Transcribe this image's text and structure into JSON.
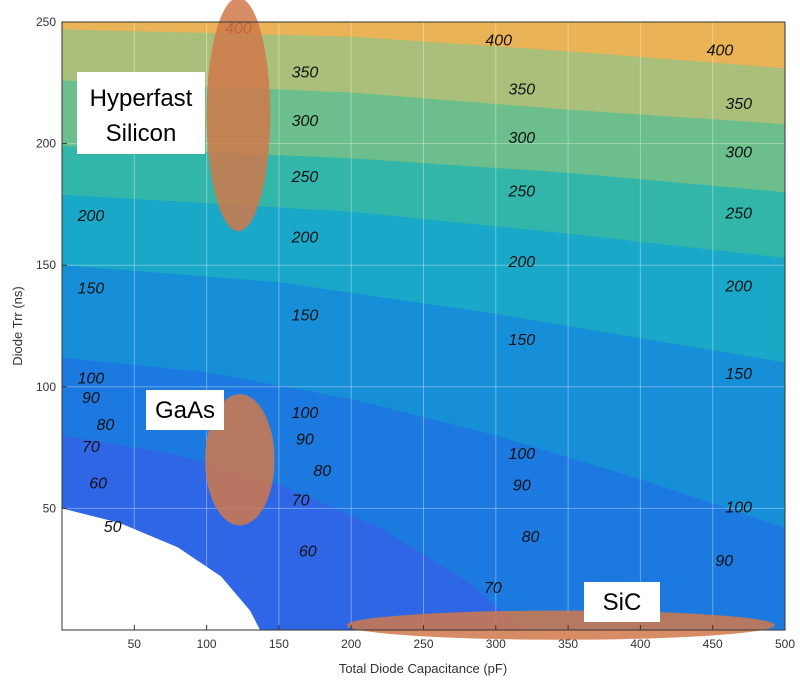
{
  "chart_data": {
    "type": "contour",
    "title": "",
    "xlabel": "Total Diode Capacitance (pF)",
    "ylabel": "Diode Trr (ns)",
    "xlim": [
      0,
      500
    ],
    "ylim": [
      0,
      250
    ],
    "xticks": [
      50,
      100,
      150,
      200,
      250,
      300,
      350,
      400,
      450,
      500
    ],
    "yticks": [
      50,
      100,
      150,
      200,
      250
    ],
    "grid": true,
    "contour_levels": [
      50,
      60,
      70,
      80,
      90,
      100,
      150,
      200,
      250,
      300,
      350,
      400
    ],
    "contour_labels": [
      {
        "text": "400",
        "x": 122,
        "y": 247
      },
      {
        "text": "400",
        "x": 302,
        "y": 242
      },
      {
        "text": "400",
        "x": 455,
        "y": 238
      },
      {
        "text": "350",
        "x": 168,
        "y": 229
      },
      {
        "text": "350",
        "x": 318,
        "y": 222
      },
      {
        "text": "350",
        "x": 468,
        "y": 216
      },
      {
        "text": "300",
        "x": 168,
        "y": 209
      },
      {
        "text": "300",
        "x": 318,
        "y": 202
      },
      {
        "text": "300",
        "x": 468,
        "y": 196
      },
      {
        "text": "250",
        "x": 168,
        "y": 186
      },
      {
        "text": "250",
        "x": 318,
        "y": 180
      },
      {
        "text": "250",
        "x": 468,
        "y": 171
      },
      {
        "text": "200",
        "x": 20,
        "y": 170
      },
      {
        "text": "200",
        "x": 168,
        "y": 161
      },
      {
        "text": "200",
        "x": 318,
        "y": 151
      },
      {
        "text": "200",
        "x": 468,
        "y": 141
      },
      {
        "text": "150",
        "x": 20,
        "y": 140
      },
      {
        "text": "150",
        "x": 168,
        "y": 129
      },
      {
        "text": "150",
        "x": 318,
        "y": 119
      },
      {
        "text": "150",
        "x": 468,
        "y": 105
      },
      {
        "text": "100",
        "x": 20,
        "y": 103
      },
      {
        "text": "100",
        "x": 168,
        "y": 89
      },
      {
        "text": "100",
        "x": 318,
        "y": 72
      },
      {
        "text": "100",
        "x": 468,
        "y": 50
      },
      {
        "text": "90",
        "x": 20,
        "y": 95
      },
      {
        "text": "90",
        "x": 168,
        "y": 78
      },
      {
        "text": "90",
        "x": 318,
        "y": 59
      },
      {
        "text": "90",
        "x": 458,
        "y": 28
      },
      {
        "text": "80",
        "x": 30,
        "y": 84
      },
      {
        "text": "80",
        "x": 180,
        "y": 65
      },
      {
        "text": "80",
        "x": 324,
        "y": 38
      },
      {
        "text": "70",
        "x": 20,
        "y": 75
      },
      {
        "text": "70",
        "x": 165,
        "y": 53
      },
      {
        "text": "70",
        "x": 298,
        "y": 17
      },
      {
        "text": "60",
        "x": 25,
        "y": 60
      },
      {
        "text": "60",
        "x": 170,
        "y": 32
      },
      {
        "text": "50",
        "x": 35,
        "y": 42
      }
    ],
    "annotations": [
      {
        "text": "Hyperfast\nSilicon",
        "region": {
          "cx": 122,
          "cy": 212,
          "rx": 22,
          "ry": 48
        },
        "color": "#d0784a"
      },
      {
        "text": "GaAs",
        "region": {
          "cx": 123,
          "cy": 70,
          "rx": 24,
          "ry": 27
        },
        "color": "#d0784a"
      },
      {
        "text": "SiC",
        "region": {
          "cx": 345,
          "cy": 2,
          "rx": 148,
          "ry": 6
        },
        "color": "#d0784a"
      }
    ]
  },
  "colors": {
    "band_under_60": "#ffffff",
    "band_60_100": "#2f66e6",
    "band_100_150": "#1c79e0",
    "band_150_200": "#178fd8",
    "band_200_250": "#1aa8c8",
    "band_250_300": "#33b6aa",
    "band_300_350": "#6cbf8c",
    "band_350_400": "#aac07a",
    "band_400_plus": "#e9b356",
    "callout_fill": "#d0784a"
  }
}
